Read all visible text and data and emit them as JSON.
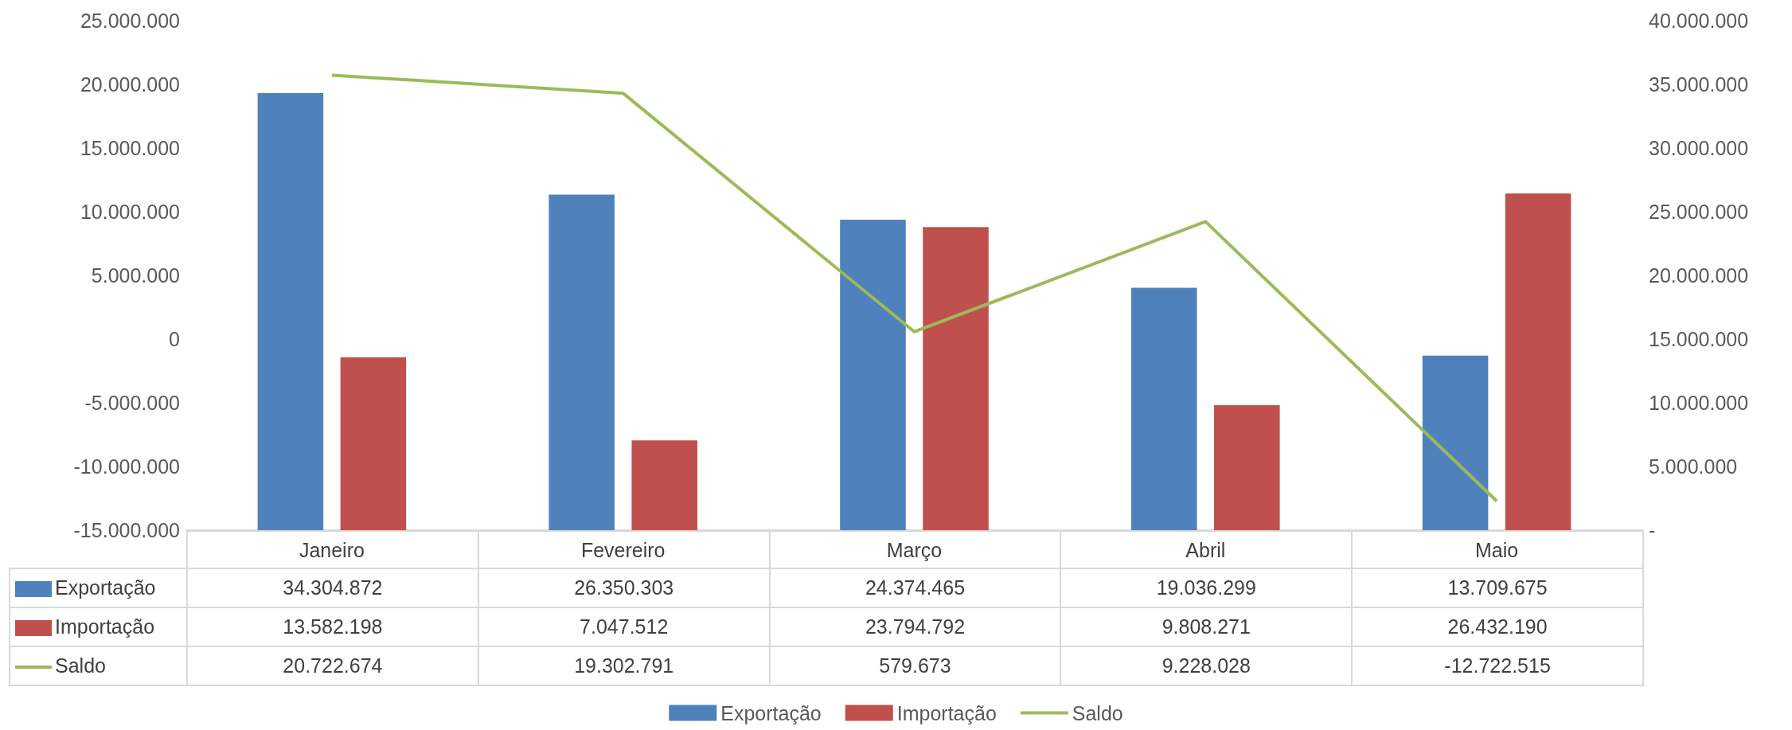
{
  "chart_data": {
    "type": "bar",
    "categories": [
      "Janeiro",
      "Fevereiro",
      "Março",
      "Abril",
      "Maio"
    ],
    "series": [
      {
        "name": "Exportação",
        "color": "#4f81bd",
        "axis": "y2",
        "values": [
          34304872,
          26350303,
          24374465,
          19036299,
          13709675
        ],
        "value_labels": [
          "34.304.872",
          "26.350.303",
          "24.374.465",
          "19.036.299",
          "13.709.675"
        ]
      },
      {
        "name": "Importação",
        "color": "#c0504d",
        "axis": "y2",
        "values": [
          13582198,
          7047512,
          23794792,
          9808271,
          26432190
        ],
        "value_labels": [
          "13.582.198",
          "7.047.512",
          "23.794.792",
          "9.808.271",
          "26.432.190"
        ]
      },
      {
        "name": "Saldo",
        "type": "line",
        "color": "#9bbb59",
        "axis": "y",
        "values": [
          20722674,
          19302791,
          579673,
          9228028,
          -12722515
        ],
        "value_labels": [
          "20.722.674",
          "19.302.791",
          "579.673",
          "9.228.028",
          "-12.722.515"
        ]
      }
    ],
    "ylim": [
      -15000000,
      25000000
    ],
    "yticks": [
      {
        "value": -15000000,
        "label": "-15.000.000"
      },
      {
        "value": -10000000,
        "label": "-10.000.000"
      },
      {
        "value": -5000000,
        "label": "-5.000.000"
      },
      0,
      {
        "value": 5000000,
        "label": "5.000.000"
      },
      {
        "value": 10000000,
        "label": "10.000.000"
      },
      {
        "value": 15000000,
        "label": "15.000.000"
      },
      {
        "value": 20000000,
        "label": "20.000.000"
      },
      {
        "value": 25000000,
        "label": "25.000.000"
      }
    ],
    "y2lim": [
      0,
      40000000
    ],
    "y2ticks": [
      {
        "value": 0,
        "label": "-"
      },
      {
        "value": 5000000,
        "label": "5.000.000"
      },
      {
        "value": 10000000,
        "label": "10.000.000"
      },
      {
        "value": 15000000,
        "label": "15.000.000"
      },
      {
        "value": 20000000,
        "label": "20.000.000"
      },
      {
        "value": 25000000,
        "label": "25.000.000"
      },
      {
        "value": 30000000,
        "label": "30.000.000"
      },
      {
        "value": 35000000,
        "label": "35.000.000"
      },
      {
        "value": 40000000,
        "label": "40.000.000"
      }
    ],
    "legend": "bottom",
    "marker": "none",
    "grid": false
  }
}
